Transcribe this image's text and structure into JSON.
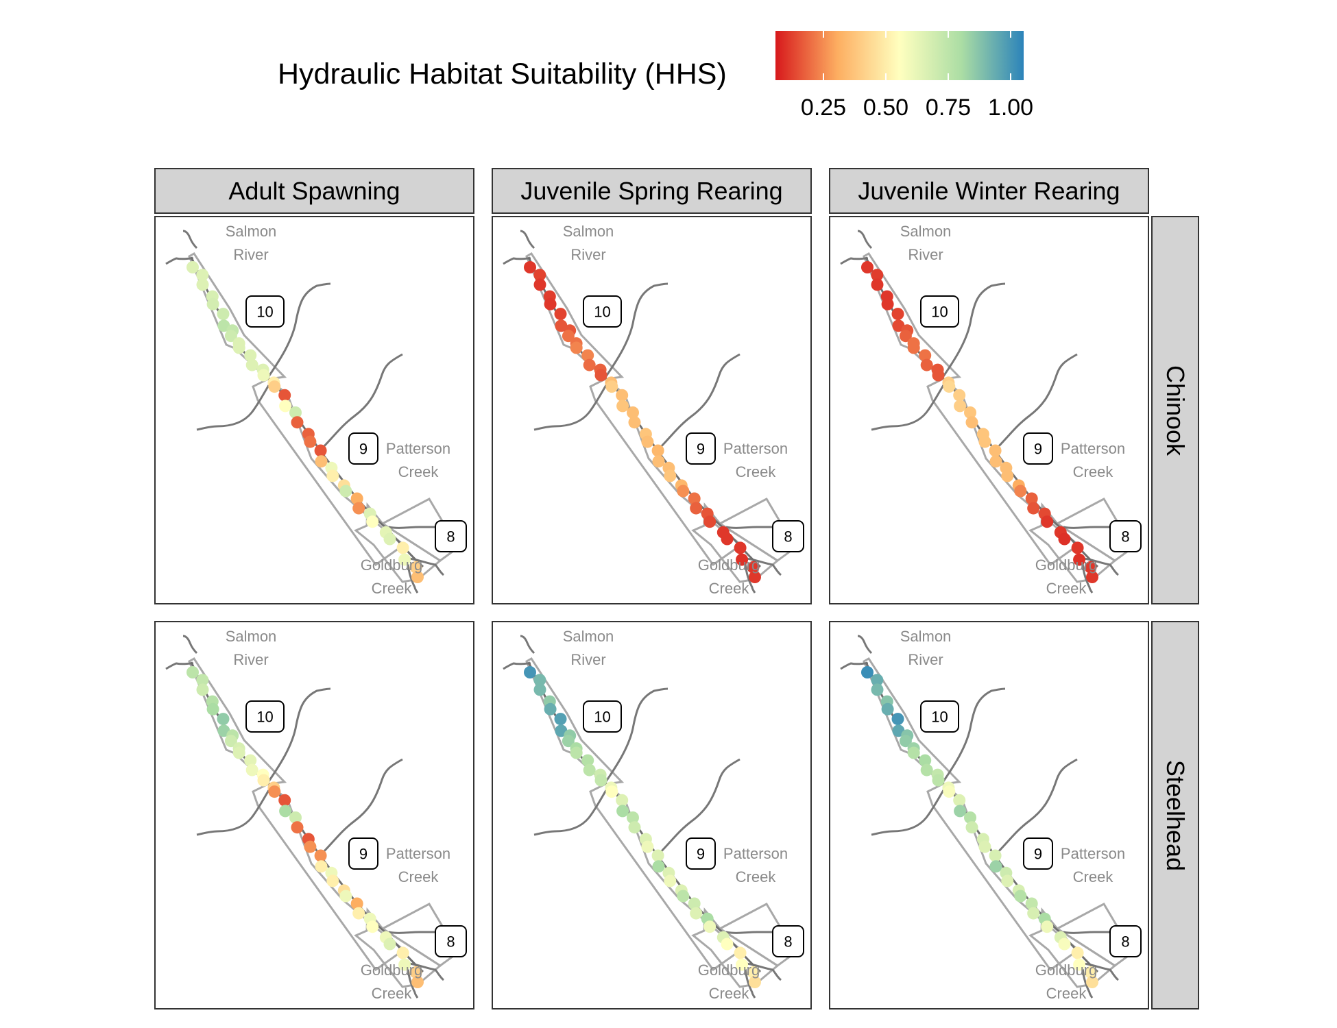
{
  "legend": {
    "title": "Hydraulic Habitat Suitability (HHS)",
    "ticks": [
      "0.25",
      "0.50",
      "0.75",
      "1.00"
    ],
    "scale_colors": [
      "#d7191c",
      "#fdae61",
      "#ffffbf",
      "#abdda4",
      "#2b83ba"
    ]
  },
  "facets": {
    "columns": [
      "Adult Spawning",
      "Juvenile Spring Rearing",
      "Juvenile Winter Rearing"
    ],
    "rows": [
      "Chinook",
      "Steelhead"
    ]
  },
  "map_labels": {
    "salmon_1": "Salmon",
    "salmon_2": "River",
    "patterson_1": "Patterson",
    "patterson_2": "Creek",
    "goldburg_1": "Goldburg",
    "goldburg_2": "Creek",
    "zone_10": "10",
    "zone_9": "9",
    "zone_8": "8"
  },
  "hhs_values": [
    [
      [
        0.6,
        0.6,
        0.6,
        0.62,
        0.63,
        0.65,
        0.7,
        0.68,
        0.65,
        0.6,
        0.6,
        0.6,
        0.6,
        0.6,
        0.55,
        0.45,
        0.35,
        0.1,
        0.5,
        0.65,
        0.12,
        0.12,
        0.15,
        0.1,
        0.3,
        0.55,
        0.45,
        0.4,
        0.65,
        0.25,
        0.2,
        0.6,
        0.5,
        0.58,
        0.6,
        0.45,
        0.55,
        0.35,
        0.3
      ],
      [
        0.05,
        0.07,
        0.05,
        0.06,
        0.05,
        0.07,
        0.1,
        0.1,
        0.15,
        0.15,
        0.18,
        0.18,
        0.14,
        0.12,
        0.1,
        0.3,
        0.35,
        0.3,
        0.32,
        0.3,
        0.3,
        0.32,
        0.3,
        0.28,
        0.3,
        0.3,
        0.32,
        0.28,
        0.2,
        0.15,
        0.12,
        0.1,
        0.08,
        0.05,
        0.05,
        0.05,
        0.04,
        0.05,
        0.05
      ],
      [
        0.05,
        0.06,
        0.05,
        0.05,
        0.05,
        0.07,
        0.08,
        0.1,
        0.12,
        0.15,
        0.15,
        0.15,
        0.12,
        0.1,
        0.1,
        0.35,
        0.38,
        0.35,
        0.35,
        0.32,
        0.3,
        0.32,
        0.32,
        0.3,
        0.3,
        0.3,
        0.3,
        0.25,
        0.18,
        0.12,
        0.1,
        0.08,
        0.05,
        0.05,
        0.04,
        0.05,
        0.04,
        0.05,
        0.05
      ]
    ],
    [
      [
        0.7,
        0.68,
        0.65,
        0.72,
        0.75,
        0.8,
        0.78,
        0.7,
        0.65,
        0.62,
        0.6,
        0.58,
        0.55,
        0.5,
        0.45,
        0.35,
        0.2,
        0.1,
        0.75,
        0.65,
        0.15,
        0.1,
        0.2,
        0.2,
        0.45,
        0.55,
        0.45,
        0.4,
        0.55,
        0.25,
        0.45,
        0.55,
        0.5,
        0.55,
        0.6,
        0.45,
        0.55,
        0.35,
        0.3
      ],
      [
        0.95,
        0.85,
        0.85,
        0.8,
        0.88,
        0.92,
        0.9,
        0.8,
        0.78,
        0.75,
        0.7,
        0.72,
        0.7,
        0.65,
        0.68,
        0.55,
        0.5,
        0.6,
        0.75,
        0.7,
        0.65,
        0.6,
        0.55,
        0.6,
        0.75,
        0.6,
        0.55,
        0.6,
        0.7,
        0.65,
        0.6,
        0.75,
        0.55,
        0.6,
        0.5,
        0.45,
        0.5,
        0.45,
        0.4
      ],
      [
        0.97,
        0.88,
        0.85,
        0.82,
        0.88,
        0.95,
        0.9,
        0.82,
        0.8,
        0.78,
        0.72,
        0.75,
        0.72,
        0.68,
        0.7,
        0.55,
        0.52,
        0.6,
        0.78,
        0.72,
        0.65,
        0.62,
        0.6,
        0.62,
        0.78,
        0.65,
        0.6,
        0.62,
        0.72,
        0.68,
        0.62,
        0.75,
        0.55,
        0.6,
        0.52,
        0.45,
        0.5,
        0.45,
        0.4
      ]
    ]
  ]
}
